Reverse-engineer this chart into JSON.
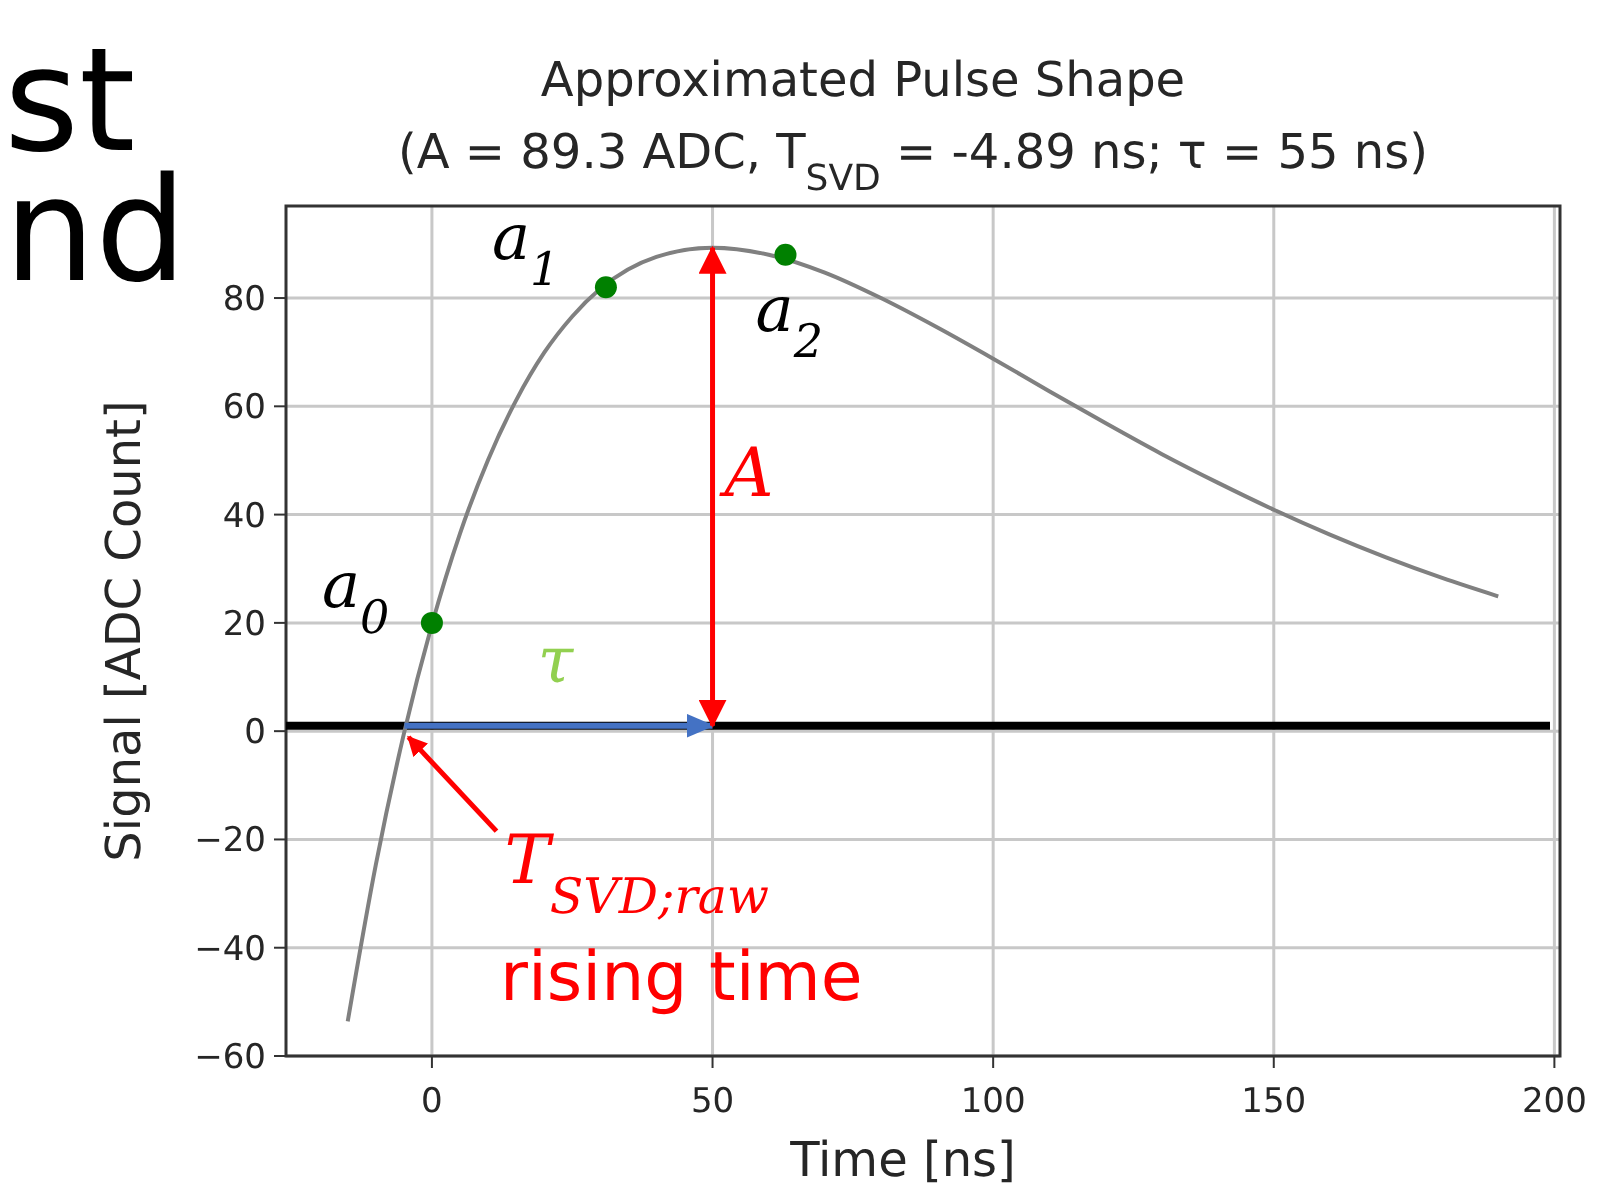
{
  "chart_data": {
    "type": "line",
    "title": "Approximated Pulse Shape",
    "subtitle": "(A = 89.3 ADC, T$_{SVD}$ = -4.89 ns; τ = 55 ns)",
    "xlabel": "Time [ns]",
    "ylabel": "Signal [ADC Count]",
    "xlim": [
      -26,
      201
    ],
    "ylim": [
      -60,
      97
    ],
    "xticks": [
      0,
      50,
      100,
      150,
      200
    ],
    "yticks": [
      -60,
      -40,
      -20,
      0,
      20,
      40,
      60,
      80
    ],
    "grid": true,
    "series": [
      {
        "color": "#808080",
        "marker": "none",
        "x": [
          -15,
          -10,
          -5,
          0,
          5,
          10,
          15,
          20,
          25,
          30,
          40,
          50,
          60,
          70,
          80,
          90,
          100,
          110,
          120,
          130,
          140,
          150,
          160,
          170,
          180,
          190
        ],
        "values": [
          -53.6,
          -24.7,
          -0.5,
          19.7,
          36.5,
          50.1,
          61.1,
          69.9,
          76.6,
          81.7,
          87.6,
          89.3,
          88.0,
          84.7,
          80.0,
          74.6,
          68.8,
          62.8,
          56.9,
          51.2,
          45.9,
          40.9,
          36.3,
          32.1,
          28.3,
          24.9
        ]
      },
      {
        "type": "scatter",
        "color": "#008000",
        "marker": "circle",
        "x": [
          0,
          31,
          63
        ],
        "values": [
          20,
          82,
          88
        ]
      }
    ],
    "ref_lines": [
      {
        "axis": "y",
        "value": 1,
        "color": "#000000"
      }
    ],
    "annotations": [
      "st",
      "nd",
      {
        "text": "a$_{0}$",
        "x": 0,
        "y": 20
      },
      {
        "text": "a$_{1}$",
        "x": 31,
        "y": 82
      },
      {
        "text": "a$_{2}$",
        "x": 63,
        "y": 88
      },
      "A",
      {
        "text": "τ",
        "x": 22,
        "y": 1
      },
      {
        "text": "T$_{SVD;raw}$",
        "x": -4.89,
        "y": 0
      },
      "rising time"
    ]
  }
}
